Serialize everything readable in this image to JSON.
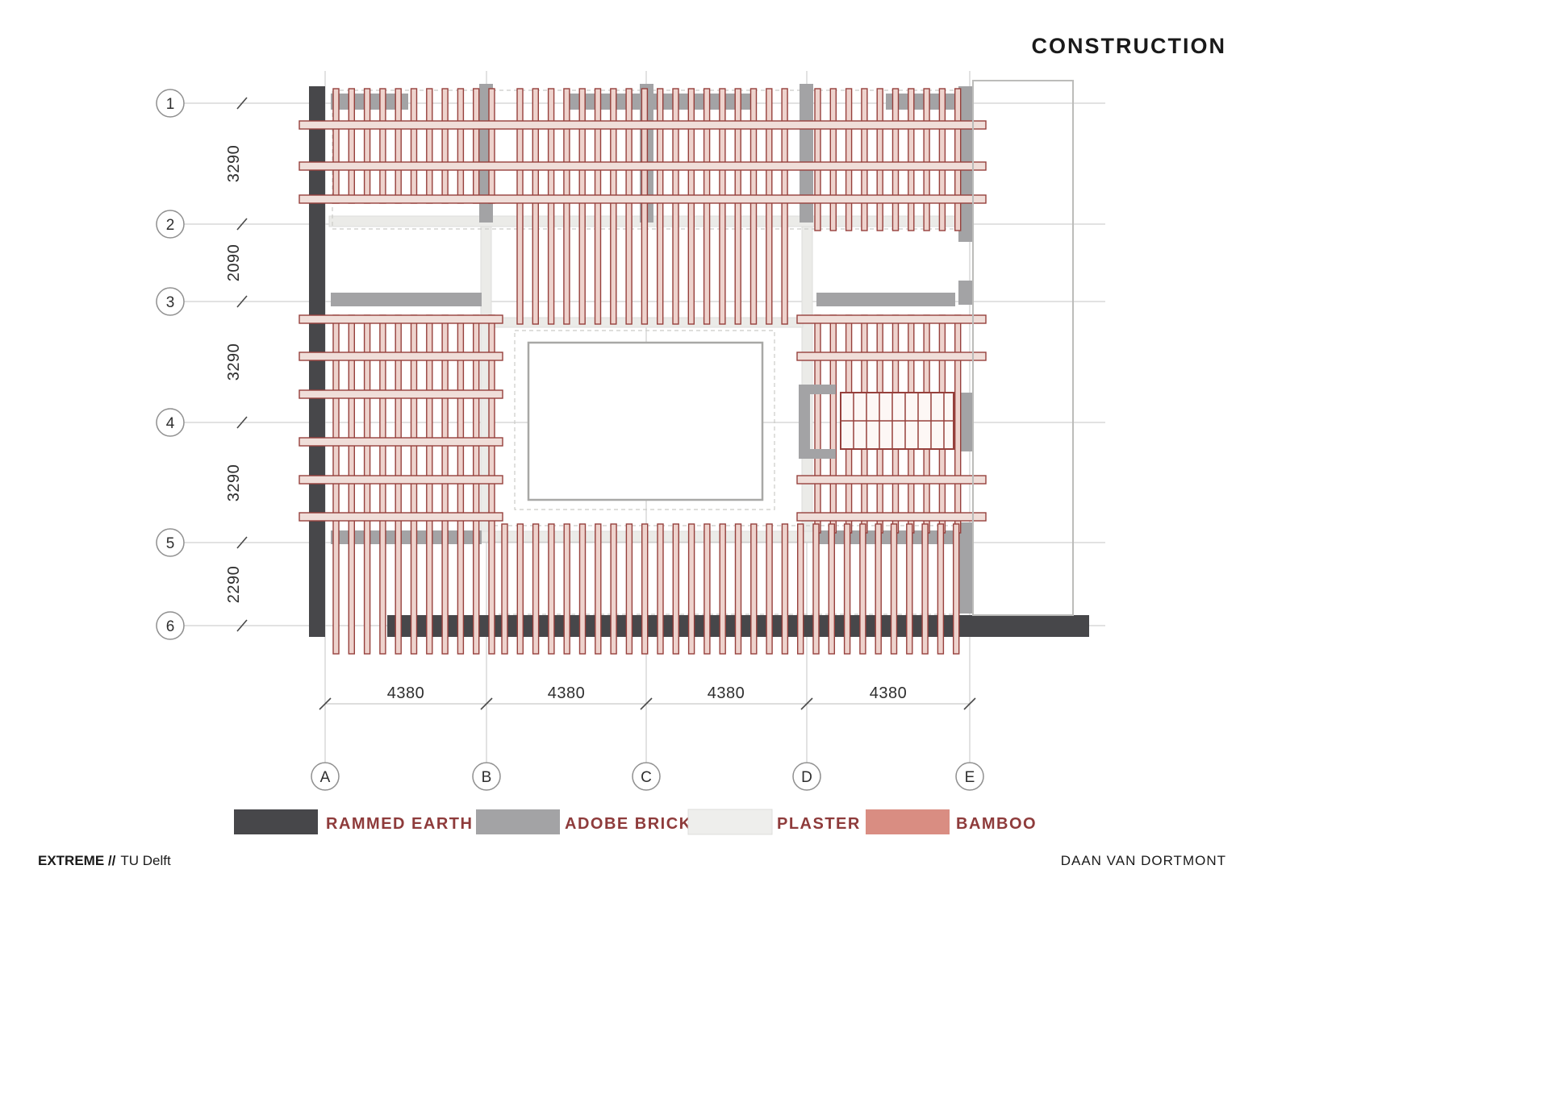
{
  "title": "CONSTRUCTION",
  "grid": {
    "rows": [
      "1",
      "2",
      "3",
      "4",
      "5",
      "6"
    ],
    "cols": [
      "A",
      "B",
      "C",
      "D",
      "E"
    ]
  },
  "dimensions": {
    "vertical": [
      "3290",
      "2090",
      "3290",
      "3290",
      "2290"
    ],
    "horizontal": [
      "4380",
      "4380",
      "4380",
      "4380"
    ]
  },
  "legend": {
    "items": [
      {
        "label": "RAMMED EARTH",
        "color": "#47474a"
      },
      {
        "label": "ADOBE BRICK",
        "color": "#a3a3a5"
      },
      {
        "label": "PLASTER",
        "color": "#eeeeec"
      },
      {
        "label": "BAMBOO",
        "color": "#d98d82"
      }
    ]
  },
  "colors": {
    "legend_text": "#8e3b3b",
    "bamboo_outline": "#96403c",
    "rammed_earth": "#47474a",
    "adobe_brick": "#a3a3a5",
    "plaster": "#eeeeec",
    "bamboo": "#d98d82",
    "grid_line": "#c6c6c4"
  },
  "footer": {
    "project": "EXTREME //",
    "institution": "TU Delft",
    "author": "DAAN VAN DORTMONT"
  }
}
